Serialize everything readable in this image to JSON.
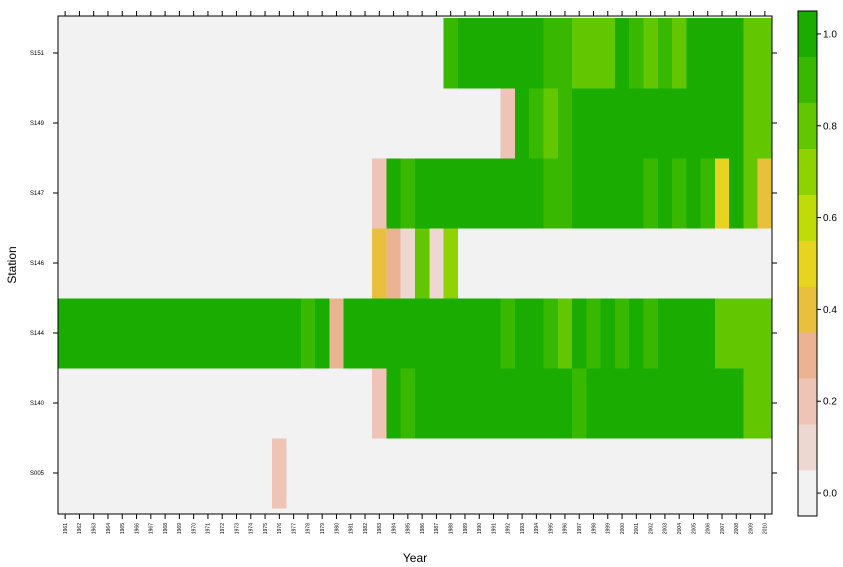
{
  "chart_data": {
    "type": "heatmap",
    "xlabel": "Year",
    "ylabel": "Station",
    "years": [
      1961,
      1962,
      1963,
      1964,
      1965,
      1966,
      1967,
      1968,
      1969,
      1970,
      1971,
      1972,
      1973,
      1974,
      1975,
      1976,
      1977,
      1978,
      1979,
      1980,
      1981,
      1982,
      1983,
      1984,
      1985,
      1986,
      1987,
      1988,
      1989,
      1990,
      1991,
      1992,
      1993,
      1994,
      1995,
      1996,
      1997,
      1998,
      1999,
      2000,
      2001,
      2002,
      2003,
      2004,
      2005,
      2006,
      2007,
      2008,
      2009,
      2010
    ],
    "x_tick_labels": [
      "1961",
      "1962",
      "1963",
      "1964",
      "1965",
      "1966",
      "1967",
      "1968",
      "1969",
      "1970",
      "1971",
      "1972",
      "1973",
      "1974",
      "1975",
      "1976",
      "1977",
      "1978",
      "1979",
      "1980",
      "1981",
      "1982",
      "1983",
      "1984",
      "1985",
      "1986",
      "1987",
      "1988",
      "1989",
      "1990",
      "1991",
      "1992",
      "1993",
      "1994",
      "1995",
      "1996",
      "1997",
      "1998",
      "1999",
      "2000",
      "2001",
      "2002",
      "2003",
      "2004",
      "2005",
      "2006",
      "2007",
      "2008",
      "2009",
      "2010"
    ],
    "stations": [
      "S005",
      "S140",
      "S144",
      "S146",
      "S147",
      "S149",
      "S151"
    ],
    "missing_value": 0.0,
    "values": {
      "S151": [
        0,
        0,
        0,
        0,
        0,
        0,
        0,
        0,
        0,
        0,
        0,
        0,
        0,
        0,
        0,
        0,
        0,
        0,
        0,
        0,
        0,
        0,
        0,
        0,
        0,
        0,
        0,
        0.93,
        0.97,
        0.97,
        0.97,
        0.97,
        0.97,
        0.97,
        0.93,
        0.93,
        0.75,
        0.75,
        0.75,
        0.97,
        0.93,
        0.84,
        0.93,
        0.75,
        0.97,
        0.97,
        0.97,
        0.97,
        0.84,
        0.75
      ],
      "S149": [
        0,
        0,
        0,
        0,
        0,
        0,
        0,
        0,
        0,
        0,
        0,
        0,
        0,
        0,
        0,
        0,
        0,
        0,
        0,
        0,
        0,
        0,
        0,
        0,
        0,
        0,
        0,
        0,
        0,
        0,
        0,
        0.15,
        0.97,
        0.93,
        0.84,
        0.93,
        0.97,
        0.97,
        0.97,
        0.97,
        0.97,
        0.97,
        0.97,
        0.97,
        0.97,
        0.97,
        0.97,
        0.97,
        0.84,
        0.75
      ],
      "S147": [
        0,
        0,
        0,
        0,
        0,
        0,
        0,
        0,
        0,
        0,
        0,
        0,
        0,
        0,
        0,
        0,
        0,
        0,
        0,
        0,
        0,
        0,
        0.15,
        0.97,
        0.93,
        0.97,
        0.97,
        0.97,
        0.97,
        0.97,
        0.97,
        0.97,
        0.97,
        0.97,
        0.93,
        0.93,
        0.97,
        0.97,
        0.97,
        0.97,
        0.97,
        0.93,
        0.97,
        0.93,
        0.97,
        0.93,
        0.45,
        0.97,
        0.84,
        0.35
      ],
      "S146": [
        0,
        0,
        0,
        0,
        0,
        0,
        0,
        0,
        0,
        0,
        0,
        0,
        0,
        0,
        0,
        0,
        0,
        0,
        0,
        0,
        0,
        0,
        0.4,
        0.25,
        0.05,
        0.84,
        0.05,
        0.65,
        0,
        0,
        0,
        0,
        0,
        0,
        0,
        0,
        0,
        0,
        0,
        0,
        0,
        0,
        0,
        0,
        0,
        0,
        0,
        0,
        0,
        0
      ],
      "S144": [
        0.97,
        0.97,
        0.97,
        1.0,
        0.97,
        0.97,
        0.97,
        1.0,
        0.97,
        0.97,
        0.97,
        1.0,
        0.97,
        0.97,
        0.97,
        1.0,
        0.97,
        0.93,
        0.97,
        0.3,
        0.97,
        1.0,
        0.97,
        0.97,
        0.97,
        1.0,
        0.97,
        0.97,
        0.97,
        0.97,
        0.97,
        0.93,
        0.97,
        0.97,
        0.93,
        0.84,
        0.97,
        0.93,
        0.97,
        0.93,
        0.97,
        0.93,
        0.97,
        0.97,
        0.97,
        0.97,
        0.84,
        0.84,
        0.84,
        0.75
      ],
      "S140": [
        0,
        0,
        0,
        0,
        0,
        0,
        0,
        0,
        0,
        0,
        0,
        0,
        0,
        0,
        0,
        0,
        0,
        0,
        0,
        0,
        0,
        0,
        0.15,
        0.97,
        0.93,
        0.97,
        0.97,
        0.97,
        0.97,
        0.97,
        0.97,
        0.97,
        0.97,
        0.97,
        0.97,
        0.97,
        0.93,
        0.97,
        0.97,
        0.97,
        0.97,
        0.97,
        0.97,
        0.97,
        0.97,
        0.97,
        0.97,
        1.0,
        0.84,
        0.75
      ],
      "S005": [
        0,
        0,
        0,
        0,
        0,
        0,
        0,
        0,
        0,
        0,
        0,
        0,
        0,
        0,
        0,
        0.15,
        0,
        0,
        0,
        0,
        0,
        0,
        0,
        0,
        0,
        0,
        0,
        0,
        0,
        0,
        0,
        0,
        0,
        0,
        0,
        0,
        0,
        0,
        0,
        0,
        0,
        0,
        0,
        0,
        0,
        0,
        0,
        0,
        0,
        0
      ]
    },
    "colorbar": {
      "ticks": [
        "0.0",
        "0.2",
        "0.4",
        "0.6",
        "0.8",
        "1.0"
      ],
      "tick_values": [
        0.0,
        0.2,
        0.4,
        0.6,
        0.8,
        1.0
      ],
      "range": [
        -0.05,
        1.05
      ],
      "bins": [
        {
          "from": -0.05,
          "to": 0.05,
          "color": "#f2f2f2"
        },
        {
          "from": 0.05,
          "to": 0.15,
          "color": "#efd7d1"
        },
        {
          "from": 0.15,
          "to": 0.25,
          "color": "#edc4b5"
        },
        {
          "from": 0.25,
          "to": 0.35,
          "color": "#ebb392"
        },
        {
          "from": 0.35,
          "to": 0.45,
          "color": "#e9c03d"
        },
        {
          "from": 0.45,
          "to": 0.55,
          "color": "#e6d420"
        },
        {
          "from": 0.55,
          "to": 0.65,
          "color": "#bfdc08"
        },
        {
          "from": 0.65,
          "to": 0.75,
          "color": "#8ed300"
        },
        {
          "from": 0.75,
          "to": 0.85,
          "color": "#63c700"
        },
        {
          "from": 0.85,
          "to": 0.95,
          "color": "#38b900"
        },
        {
          "from": 0.95,
          "to": 1.05,
          "color": "#1aad00"
        }
      ]
    }
  }
}
